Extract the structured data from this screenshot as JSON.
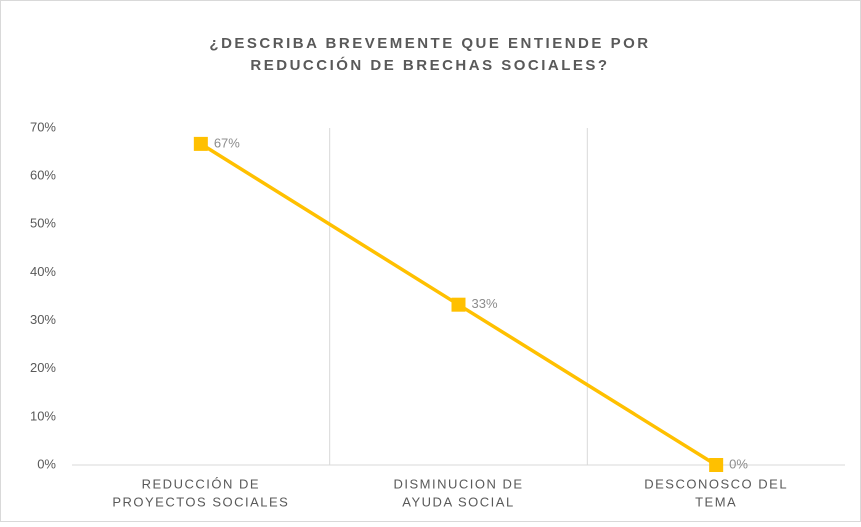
{
  "chart_data": {
    "type": "line",
    "title": [
      "¿DESCRIBA BREVEMENTE QUE ENTIENDE POR",
      "REDUCCIÓN DE BRECHAS SOCIALES?"
    ],
    "categories": [
      [
        "REDUCCIÓN DE",
        "PROYECTOS SOCIALES"
      ],
      [
        "DISMINUCION DE",
        "AYUDA SOCIAL"
      ],
      [
        "DESCONOSCO DEL",
        "TEMA"
      ]
    ],
    "values": [
      66.7,
      33.3,
      0
    ],
    "value_labels": [
      "67%",
      "33%",
      "0%"
    ],
    "color": "#FFC000",
    "ylim": [
      0,
      70
    ],
    "yticks": [
      {
        "value": 0,
        "label": "0%"
      },
      {
        "value": 10,
        "label": "10%"
      },
      {
        "value": 20,
        "label": "20%"
      },
      {
        "value": 30,
        "label": "30%"
      },
      {
        "value": 40,
        "label": "40%"
      },
      {
        "value": 50,
        "label": "50%"
      },
      {
        "value": 60,
        "label": "60%"
      },
      {
        "value": 70,
        "label": "70%"
      }
    ]
  }
}
